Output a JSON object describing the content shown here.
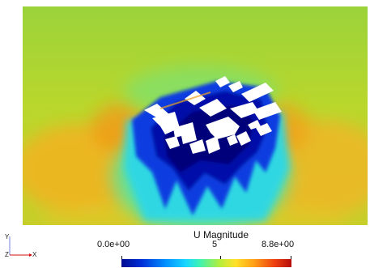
{
  "scalar_bar": {
    "title": "U Magnitude",
    "range_min_label": "0.0e+00",
    "range_mid_label": "5",
    "range_max_label": "8.8e+00",
    "range": [
      0.0,
      8.8
    ],
    "colormap": "rainbow"
  },
  "orientation_axes": {
    "y_label": "Y",
    "z_label": "Z",
    "x_label": "X",
    "x_color": "#d01010",
    "z_color": "#2030c0"
  },
  "icons": [
    "orientation-axes-icon"
  ]
}
